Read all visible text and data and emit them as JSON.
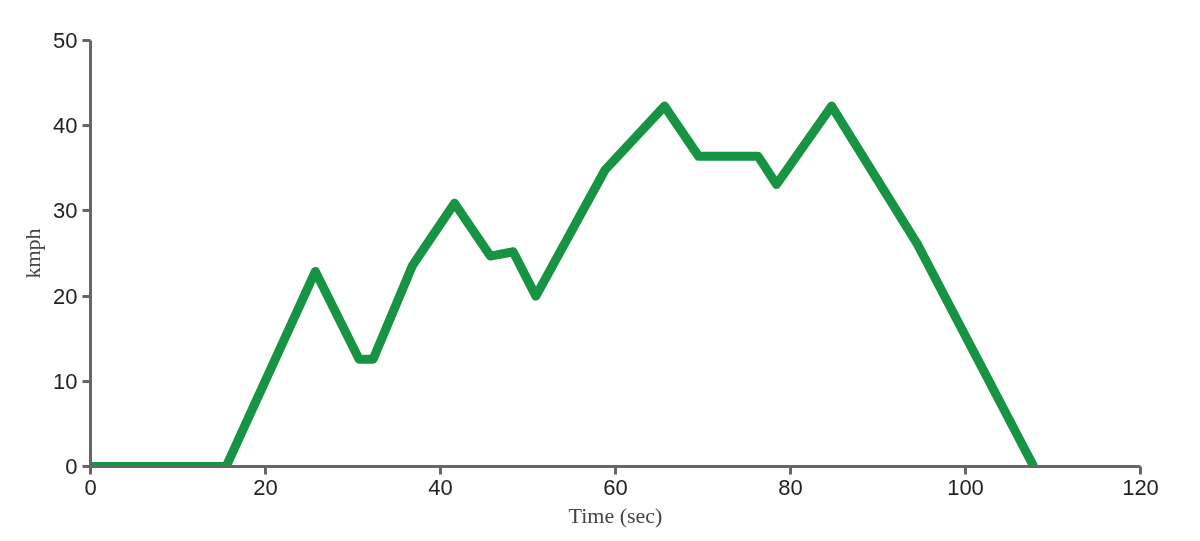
{
  "chart_data": {
    "type": "line",
    "xlabel": "Time (sec)",
    "ylabel": "kmph",
    "x": [
      0,
      15.5,
      25.7,
      30.7,
      32.3,
      36.8,
      41.6,
      45.7,
      48.3,
      50.9,
      58.8,
      65.6,
      69.5,
      76.3,
      78.4,
      84.7,
      94.5,
      107.8
    ],
    "series": [
      {
        "color": "#169443",
        "values": [
          0,
          0,
          22.9,
          12.6,
          12.6,
          23.6,
          30.9,
          24.7,
          25.2,
          20,
          34.8,
          42.3,
          36.4,
          36.4,
          33.1,
          42.3,
          26.1,
          0
        ]
      }
    ],
    "xlim": [
      0,
      120
    ],
    "xticks": [
      0,
      20,
      40,
      60,
      80,
      100,
      120
    ],
    "ylim": [
      0,
      50
    ],
    "yticks": [
      0,
      10,
      20,
      30,
      40,
      50
    ],
    "grid": false,
    "marker": "none",
    "line_style": "solid"
  }
}
